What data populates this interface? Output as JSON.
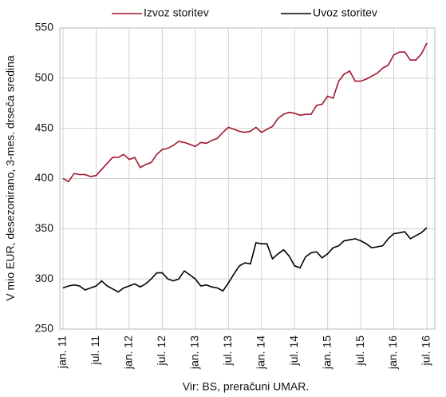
{
  "chart_data": {
    "type": "line",
    "y_label": "V mio EUR, desezonirano, 3-mes. drseča sredina",
    "source": "Vir: BS, preračuni UMAR.",
    "categories": [
      "jan. 11",
      null,
      null,
      null,
      null,
      null,
      "jul. 11",
      null,
      null,
      null,
      null,
      null,
      "jan. 12",
      null,
      null,
      null,
      null,
      null,
      "jul. 12",
      null,
      null,
      null,
      null,
      null,
      "jan. 13",
      null,
      null,
      null,
      null,
      null,
      "jul. 13",
      null,
      null,
      null,
      null,
      null,
      "jan. 14",
      null,
      null,
      null,
      null,
      null,
      "jul. 14",
      null,
      null,
      null,
      null,
      null,
      "jan. 15",
      null,
      null,
      null,
      null,
      null,
      "jul. 15",
      null,
      null,
      null,
      null,
      null,
      "jan. 16",
      null,
      null,
      null,
      null,
      null,
      "jul. 16"
    ],
    "series": [
      {
        "name": "Izvoz storitev",
        "color": "#a0162d",
        "values": [
          400,
          397,
          405,
          404,
          404,
          402,
          403,
          409,
          415,
          421,
          421,
          424,
          419,
          421,
          411,
          414,
          416,
          424,
          429,
          430,
          433,
          437,
          436,
          434,
          432,
          436,
          435,
          438,
          440,
          446,
          451,
          449,
          447,
          446,
          447,
          451,
          446,
          449,
          452,
          460,
          464,
          466,
          465,
          463,
          464,
          464,
          473,
          474,
          482,
          480,
          497,
          504,
          507,
          497,
          497,
          499,
          502,
          505,
          510,
          513,
          523,
          526,
          526,
          518,
          518,
          524,
          535
        ]
      },
      {
        "name": "Uvoz storitev",
        "color": "#000000",
        "values": [
          291,
          293,
          294,
          293,
          289,
          291,
          293,
          298,
          293,
          290,
          287,
          291,
          293,
          295,
          292,
          295,
          300,
          306,
          306,
          300,
          298,
          300,
          308,
          304,
          300,
          293,
          294,
          292,
          291,
          288,
          296,
          305,
          313,
          316,
          315,
          336,
          335,
          335,
          320,
          325,
          329,
          323,
          313,
          311,
          322,
          326,
          327,
          321,
          325,
          331,
          333,
          338,
          339,
          340,
          338,
          335,
          331,
          332,
          333,
          340,
          345,
          346,
          347,
          340,
          343,
          346,
          351
        ]
      }
    ],
    "ylim": [
      250,
      550
    ],
    "yticks": [
      250,
      300,
      350,
      400,
      450,
      500,
      550
    ],
    "grid": true
  }
}
